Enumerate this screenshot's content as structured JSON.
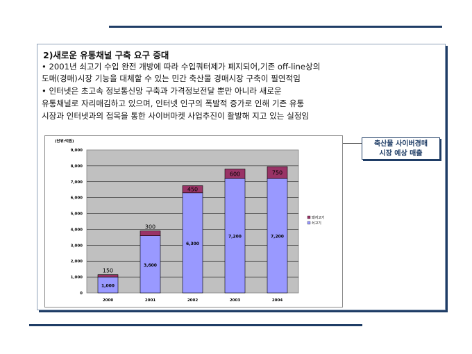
{
  "section": {
    "heading": "2)새로운 유통채널 구축 요구 증대",
    "lines": [
      "• 2001년 쇠고기 수입 완전 개방에 따라 수입쿼터제가 폐지되어,기존 off-line상의",
      " 도매(경매)시장 기능을 대체할 수 있는 민간 축산물 경매시장 구축이 필연적임",
      "• 인터넷은 초고속 정보통신망 구축과 가격정보전달 뿐만 아니라 새로운",
      " 유통채널로 자리매김하고 있으며, 인터넷 인구의 폭발적 증가로 인해 기존 유통",
      " 시장과 인터넷과의 접목을 통한 사이버마켓 사업추진이 활발해 지고 있는 실정임"
    ]
  },
  "callout": {
    "line1": "축산물 사이버경매",
    "line2": "시장 예상 매출"
  },
  "chart_data": {
    "type": "bar",
    "stacked": true,
    "unit_label": "(단위:억원)",
    "categories": [
      "2000",
      "2001",
      "2002",
      "2003",
      "2004"
    ],
    "series": [
      {
        "name": "쇠고기",
        "values": [
          1000,
          3600,
          6300,
          7200,
          7200
        ],
        "color": "#9999ff",
        "labels": [
          "1,000",
          "3,600",
          "6,300",
          "7,200",
          "7,200"
        ]
      },
      {
        "name": "돼지고기",
        "values": [
          150,
          300,
          450,
          600,
          750
        ],
        "color": "#993366",
        "labels": [
          "150",
          "300",
          "450",
          "600",
          "750"
        ]
      }
    ],
    "legend_order": [
      "돼지고기",
      "쇠고기"
    ],
    "legend_position": "right",
    "ylim": [
      0,
      9000
    ],
    "yticks": [
      "0",
      "1,000",
      "2,000",
      "3,000",
      "4,000",
      "5,000",
      "6,000",
      "7,000",
      "8,000",
      "9,000"
    ],
    "plot_background": "#c0c0c0",
    "grid": true
  }
}
